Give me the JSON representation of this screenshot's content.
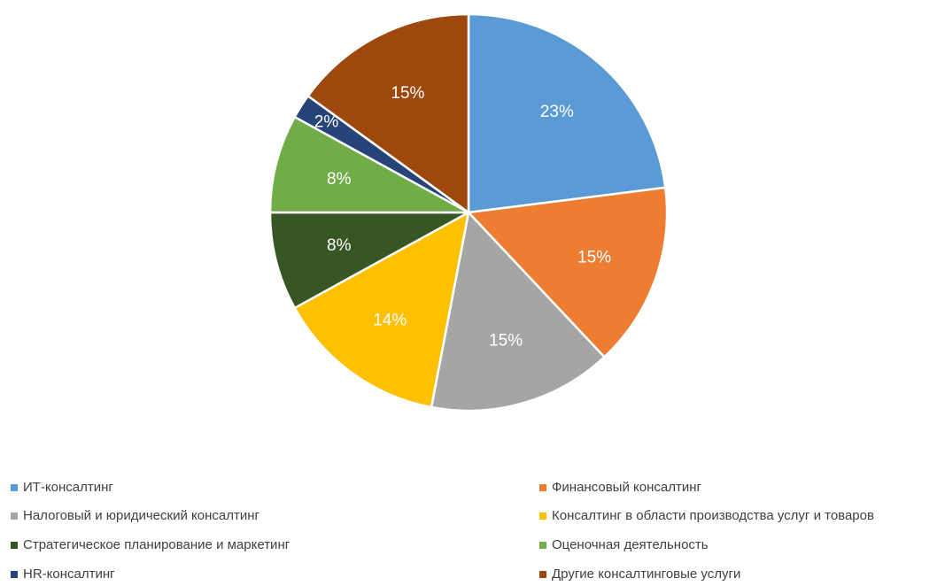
{
  "chart_data": {
    "type": "pie",
    "categories": [
      "ИТ-консалтинг",
      "Финансовый консалтинг",
      "Налоговый и юридический консалтинг",
      "Консалтинг в области производства услуг и товаров",
      "Стратегическое планирование и маркетинг",
      "Оценочная деятельность",
      "HR-консалтинг",
      "Другие консалтинговые услуги"
    ],
    "values": [
      23,
      15,
      15,
      14,
      8,
      8,
      2,
      15
    ],
    "labels": [
      "23%",
      "15%",
      "15%",
      "14%",
      "8%",
      "8%",
      "2%",
      "15%"
    ],
    "colors": [
      "#5B9BD5",
      "#ED7D31",
      "#A5A5A5",
      "#FFC000",
      "#375623",
      "#70AD47",
      "#264478",
      "#9E480E"
    ],
    "legend_position": "bottom",
    "start_angle": "top",
    "direction": "clockwise"
  }
}
